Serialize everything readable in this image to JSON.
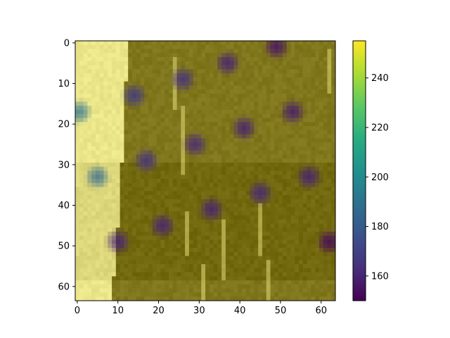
{
  "chart_data": {
    "type": "heatmap",
    "title": "",
    "xlabel": "",
    "ylabel": "",
    "grid_size": [
      64,
      64
    ],
    "xlim": [
      -0.5,
      63.5
    ],
    "ylim": [
      63.5,
      -0.5
    ],
    "x_ticks": [
      0,
      10,
      20,
      30,
      40,
      50,
      60
    ],
    "y_ticks": [
      0,
      10,
      20,
      30,
      40,
      50,
      60
    ],
    "x_tick_labels": [
      "0",
      "10",
      "20",
      "30",
      "40",
      "50",
      "60"
    ],
    "y_tick_labels": [
      "0",
      "10",
      "20",
      "30",
      "40",
      "50",
      "60"
    ],
    "colormap": "viridis",
    "colorbar": {
      "range": [
        150,
        255
      ],
      "ticks": [
        160,
        180,
        200,
        220,
        240
      ],
      "tick_labels": [
        "160",
        "180",
        "200",
        "220",
        "240"
      ],
      "position": "right"
    },
    "background": {
      "bright_region_value": 242,
      "dark_region_value": 225,
      "boundary": [
        [
          0,
          12.5
        ],
        [
          20,
          11.5
        ],
        [
          40,
          10.5
        ],
        [
          63,
          8.5
        ]
      ]
    },
    "blobs": [
      {
        "x": 49,
        "y": 1,
        "value": 155
      },
      {
        "x": 37,
        "y": 5,
        "value": 160
      },
      {
        "x": 26,
        "y": 9,
        "value": 165
      },
      {
        "x": 14,
        "y": 13,
        "value": 168
      },
      {
        "x": 53,
        "y": 17,
        "value": 158
      },
      {
        "x": 0.5,
        "y": 17,
        "value": 190
      },
      {
        "x": 41,
        "y": 21,
        "value": 160
      },
      {
        "x": 29,
        "y": 25,
        "value": 162
      },
      {
        "x": 17,
        "y": 29,
        "value": 165
      },
      {
        "x": 57,
        "y": 33,
        "value": 160
      },
      {
        "x": 5,
        "y": 33,
        "value": 185
      },
      {
        "x": 45,
        "y": 37,
        "value": 162
      },
      {
        "x": 33,
        "y": 41,
        "value": 160
      },
      {
        "x": 21,
        "y": 45,
        "value": 160
      },
      {
        "x": 10,
        "y": 49,
        "value": 160
      },
      {
        "x": 62,
        "y": 49,
        "value": 152
      }
    ],
    "streaks": [
      {
        "x": 24,
        "y0": 4,
        "y1": 16
      },
      {
        "x": 26,
        "y0": 16,
        "y1": 32
      },
      {
        "x": 27,
        "y0": 42,
        "y1": 52
      },
      {
        "x": 31,
        "y0": 55,
        "y1": 63
      },
      {
        "x": 36,
        "y0": 44,
        "y1": 58
      },
      {
        "x": 45,
        "y0": 40,
        "y1": 52
      },
      {
        "x": 47,
        "y0": 54,
        "y1": 63
      },
      {
        "x": 62,
        "y0": 2,
        "y1": 12
      }
    ]
  }
}
